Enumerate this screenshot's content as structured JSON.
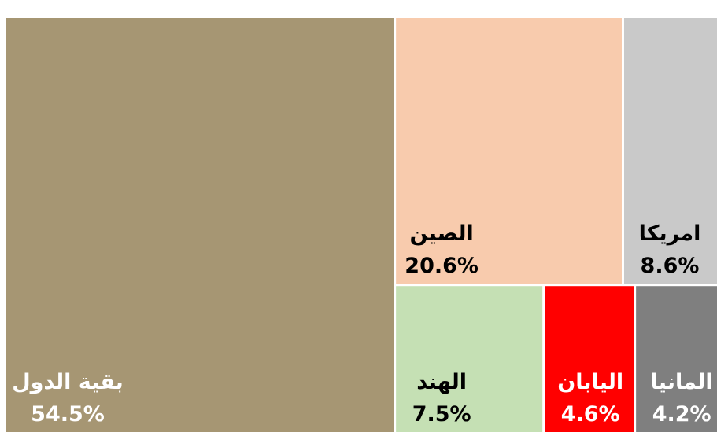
{
  "chart_data": {
    "type": "treemap",
    "categories": [
      "بقية الدول",
      "الصين",
      "امريكا",
      "الهند",
      "اليابان",
      "المانيا"
    ],
    "values": [
      54.5,
      20.6,
      8.6,
      7.5,
      4.6,
      4.2
    ],
    "value_labels": [
      "54.5%",
      "20.6%",
      "8.6%",
      "7.5%",
      "4.6%",
      "4.2%"
    ],
    "colors": [
      "#a69673",
      "#f8cbad",
      "#c9c9c9",
      "#c5e0b4",
      "#ff0000",
      "#7f7f7f"
    ],
    "label_colors": [
      "#ffffff",
      "#000000",
      "#000000",
      "#000000",
      "#ffffff",
      "#ffffff"
    ]
  }
}
